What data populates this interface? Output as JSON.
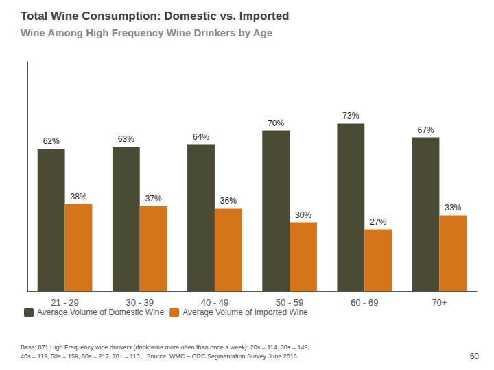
{
  "chart_data": {
    "type": "bar",
    "title": "Total Wine Consumption: Domestic vs. Imported",
    "subtitle": "Wine Among High Frequency Wine Drinkers by Age",
    "categories": [
      "21 - 29",
      "30 - 39",
      "40 - 49",
      "50 - 59",
      "60 - 69",
      "70+"
    ],
    "series": [
      {
        "name": "Average Volume of Domestic Wine",
        "color": "#4a4a35",
        "values": [
          62,
          63,
          64,
          70,
          73,
          67
        ],
        "value_labels": [
          "62%",
          "63%",
          "64%",
          "70%",
          "73%",
          "67%"
        ]
      },
      {
        "name": "Average Volume of Imported Wine",
        "color": "#d4751a",
        "values": [
          38,
          37,
          36,
          30,
          27,
          33
        ],
        "value_labels": [
          "38%",
          "37%",
          "36%",
          "30%",
          "27%",
          "33%"
        ]
      }
    ],
    "ylim": [
      0,
      100
    ],
    "tick_labels": "x",
    "grid": false,
    "legend": "lower left",
    "data_labels": true,
    "annotations": [
      "Base: 871 High Frequency wine drinkers (drink wine more often than once a week): 20s = 114, 30s = 149,\n40s = 119, 50s = 159, 60s = 217, 70+ = 113.   Source: WMC – ORC Segmentation Survey June 2016",
      "60"
    ]
  }
}
